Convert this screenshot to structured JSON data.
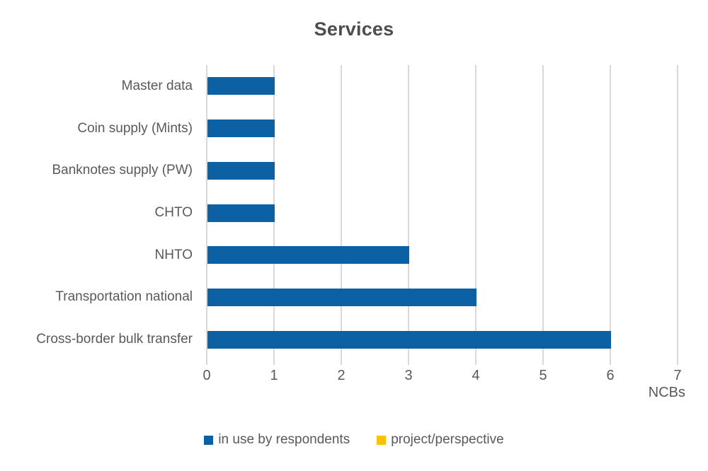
{
  "chart_data": {
    "type": "bar",
    "orientation": "horizontal",
    "title": "Services",
    "xlabel": "NCBs",
    "xlim": [
      0,
      7
    ],
    "xticks": [
      0,
      1,
      2,
      3,
      4,
      5,
      6,
      7
    ],
    "grid": true,
    "legend_position": "bottom",
    "categories": [
      "Master data",
      "Coin supply (Mints)",
      "Banknotes supply (PW)",
      "CHTO",
      "NHTO",
      "Transportation national",
      "Cross-border bulk transfer"
    ],
    "series": [
      {
        "name": "in use by respondents",
        "color": "#0B61A4",
        "values": [
          1,
          1,
          1,
          1,
          3,
          4,
          6
        ]
      },
      {
        "name": "project/perspective",
        "color": "#FFC000",
        "values": [
          0,
          0,
          0,
          0,
          0,
          0,
          0
        ]
      }
    ],
    "colors": {
      "gridline": "#D9D9D9",
      "title_text": "#4D4D4D",
      "axis_text": "#595959",
      "background": "#FFFFFF"
    }
  }
}
